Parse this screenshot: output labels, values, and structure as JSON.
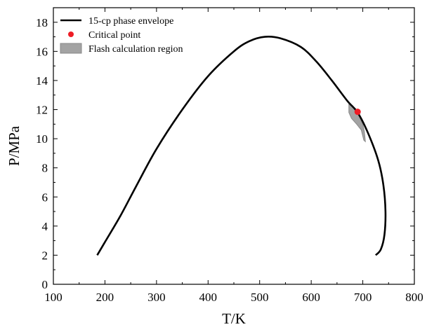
{
  "chart_data": {
    "type": "line",
    "xlabel": "T/K",
    "ylabel": "P/MPa",
    "xlim": [
      100,
      800
    ],
    "ylim": [
      0,
      19
    ],
    "x_ticks": [
      100,
      200,
      300,
      400,
      500,
      600,
      700,
      800
    ],
    "y_ticks": [
      0,
      2,
      4,
      6,
      8,
      10,
      12,
      14,
      16,
      18
    ],
    "grid": false,
    "legend_position": "top-left",
    "colors": {
      "envelope": "#000000",
      "critical_point": "#ee1c25",
      "flash_region_fill": "#a3a3a3",
      "flash_region_edge": "#8a8a8a"
    },
    "series": [
      {
        "name": "15-cp phase envelope",
        "kind": "line",
        "points": [
          [
            185,
            2.0
          ],
          [
            200,
            2.9
          ],
          [
            230,
            4.7
          ],
          [
            260,
            6.7
          ],
          [
            300,
            9.3
          ],
          [
            350,
            12.0
          ],
          [
            400,
            14.3
          ],
          [
            450,
            16.0
          ],
          [
            480,
            16.7
          ],
          [
            510,
            17.0
          ],
          [
            540,
            16.9
          ],
          [
            580,
            16.3
          ],
          [
            610,
            15.3
          ],
          [
            640,
            14.0
          ],
          [
            670,
            12.6
          ],
          [
            690,
            11.8
          ],
          [
            710,
            10.4
          ],
          [
            730,
            8.5
          ],
          [
            740,
            6.8
          ],
          [
            744,
            5.0
          ],
          [
            742,
            3.4
          ],
          [
            735,
            2.4
          ],
          [
            725,
            2.0
          ]
        ]
      },
      {
        "name": "Critical point",
        "kind": "point",
        "points": [
          [
            690,
            11.85
          ]
        ]
      },
      {
        "name": "Flash calculation region",
        "kind": "region",
        "points": [
          [
            673,
            12.5
          ],
          [
            682,
            12.1
          ],
          [
            692,
            11.6
          ],
          [
            700,
            11.0
          ],
          [
            703,
            10.5
          ],
          [
            705,
            9.8
          ],
          [
            702,
            9.9
          ],
          [
            697,
            10.6
          ],
          [
            688,
            11.0
          ],
          [
            678,
            11.4
          ],
          [
            673,
            11.8
          ]
        ]
      }
    ]
  }
}
